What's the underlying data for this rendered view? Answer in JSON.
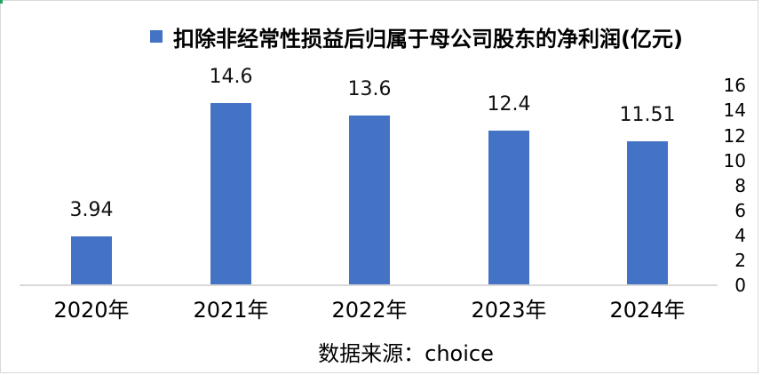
{
  "chart_data": {
    "type": "bar",
    "title": "扣除非经常性损益后归属于母公司股东的净利润(亿元)",
    "categories": [
      "2020年",
      "2021年",
      "2022年",
      "2023年",
      "2024年"
    ],
    "values": [
      3.94,
      14.6,
      13.6,
      12.4,
      11.51
    ],
    "data_labels": [
      "3.94",
      "14.6",
      "13.6",
      "12.4",
      "11.51"
    ],
    "y_ticks": [
      0,
      2,
      4,
      6,
      8,
      10,
      12,
      14,
      16
    ],
    "ylim": [
      0,
      16
    ],
    "y_axis_side": "right",
    "grid": false,
    "legend_position": "top",
    "bar_color": "#4472C4",
    "axis_line_color": "#D9D9D9",
    "source_note": "数据来源：choice"
  }
}
